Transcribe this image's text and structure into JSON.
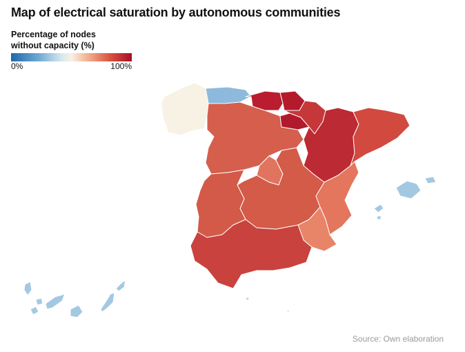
{
  "title": "Map of electrical saturation by autonomous communities",
  "legend": {
    "title_line1": "Percentage of nodes",
    "title_line2": "without capacity (%)",
    "min_label": "0%",
    "max_label": "100%"
  },
  "source": "Source: Own elaboration",
  "colors": {
    "scale_low": "#2166ac",
    "scale_mid": "#f8f0e6",
    "scale_high": "#a50f26",
    "galicia": "#f7f2e3",
    "asturias": "#8dbadc",
    "cantabria": "#b91d2f",
    "pais_vasco": "#b31b2d",
    "navarra": "#c6373a",
    "la_rioja": "#b01a2c",
    "aragon": "#bc2a33",
    "cataluna": "#d1493f",
    "castilla_y_leon": "#d55e4c",
    "madrid": "#e1745e",
    "castilla_la_mancha": "#d35b48",
    "extremadura": "#d35a48",
    "valencia": "#e4765e",
    "murcia": "#e88468",
    "andalucia": "#c9423e",
    "baleares": "#a3c9e2",
    "canarias": "#a3c9e2",
    "ceuta_melilla": "#b8d4e8"
  }
}
